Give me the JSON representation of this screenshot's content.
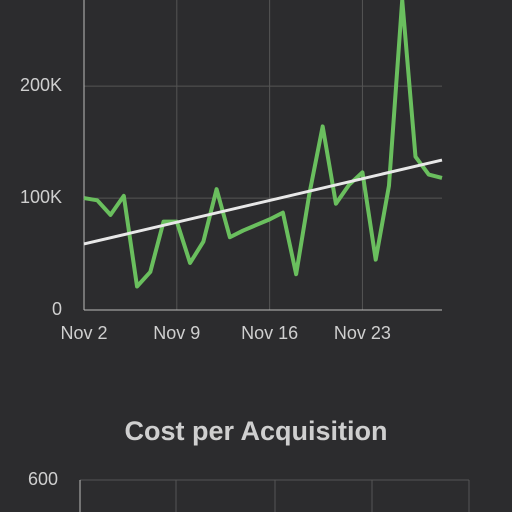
{
  "chart_data": [
    {
      "type": "line",
      "categories": [
        "Nov 2",
        null,
        null,
        null,
        null,
        null,
        null,
        "Nov 9",
        null,
        null,
        null,
        null,
        null,
        null,
        "Nov 16",
        null,
        null,
        null,
        null,
        null,
        null,
        "Nov 23",
        null,
        null,
        null,
        null,
        null,
        null
      ],
      "values": [
        100000,
        98000,
        85000,
        102000,
        21000,
        34000,
        79000,
        79000,
        42000,
        61000,
        108000,
        65000,
        71000,
        76000,
        81000,
        87000,
        32000,
        104000,
        164000,
        95000,
        112000,
        123000,
        45000,
        111000,
        277000,
        137000,
        121000,
        118000
      ],
      "color": "#6abf5e",
      "trend": [
        59000,
        134000
      ],
      "trend_color": "#e8e8e8",
      "ylim": [
        0,
        277000
      ],
      "yticks": [
        0,
        {
          "value": 100000,
          "label": "100K"
        },
        {
          "value": 200000,
          "label": "200K"
        }
      ],
      "grid": true
    },
    {
      "type": "line",
      "title": "Cost per Acquisition",
      "ylim": [
        0,
        600
      ],
      "yticks": [
        600
      ],
      "grid": true
    }
  ]
}
